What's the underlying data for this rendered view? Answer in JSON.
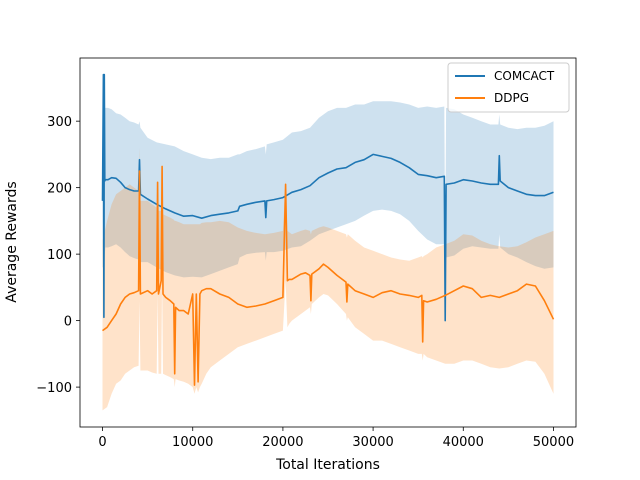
{
  "chart_data": {
    "type": "line",
    "title": "",
    "xlabel": "Total Iterations",
    "ylabel": "Average Rewards",
    "xlim": [
      -2500,
      52500
    ],
    "ylim": [
      -160,
      395
    ],
    "xticks": [
      0,
      10000,
      20000,
      30000,
      40000,
      50000
    ],
    "yticks": [
      -100,
      0,
      100,
      200,
      300
    ],
    "grid": false,
    "legend_position": "top-right",
    "series": [
      {
        "name": "COMCACT",
        "color": "#1f77b4",
        "band_opacity": 0.22,
        "x": [
          0,
          100,
          150,
          200,
          250,
          300,
          600,
          1000,
          1500,
          2000,
          2500,
          3000,
          3500,
          4000,
          4100,
          4200,
          5000,
          6000,
          7000,
          8000,
          9000,
          10000,
          11000,
          12000,
          13000,
          14000,
          15000,
          15200,
          16000,
          17000,
          18000,
          18100,
          18200,
          19000,
          20000,
          21000,
          22000,
          23000,
          24000,
          25000,
          26000,
          27000,
          28000,
          29000,
          30000,
          31000,
          32000,
          33000,
          34000,
          35000,
          36000,
          37000,
          37900,
          38000,
          38100,
          39000,
          40000,
          41000,
          42000,
          43000,
          43900,
          44000,
          44100,
          45000,
          46000,
          47000,
          48000,
          49000,
          50000
        ],
        "y": [
          180,
          370,
          5,
          370,
          210,
          212,
          212,
          215,
          214,
          208,
          200,
          197,
          195,
          195,
          242,
          190,
          183,
          175,
          168,
          162,
          157,
          158,
          154,
          158,
          160,
          162,
          165,
          172,
          175,
          178,
          180,
          155,
          180,
          182,
          185,
          193,
          197,
          203,
          215,
          222,
          228,
          230,
          238,
          242,
          250,
          247,
          244,
          238,
          230,
          220,
          218,
          215,
          217,
          0,
          205,
          207,
          212,
          210,
          207,
          205,
          205,
          248,
          210,
          200,
          195,
          190,
          188,
          188,
          193
        ],
        "upper": [
          150,
          320,
          150,
          320,
          320,
          320,
          320,
          318,
          312,
          310,
          305,
          300,
          298,
          295,
          300,
          290,
          275,
          268,
          265,
          262,
          255,
          250,
          245,
          243,
          245,
          245,
          250,
          250,
          255,
          258,
          262,
          250,
          265,
          268,
          272,
          283,
          285,
          290,
          305,
          315,
          320,
          320,
          325,
          325,
          330,
          330,
          330,
          328,
          325,
          320,
          322,
          320,
          322,
          100,
          320,
          318,
          310,
          305,
          300,
          295,
          295,
          310,
          295,
          290,
          288,
          290,
          290,
          293,
          300
        ],
        "lower": [
          80,
          80,
          80,
          80,
          100,
          110,
          110,
          112,
          115,
          110,
          103,
          97,
          94,
          92,
          120,
          88,
          88,
          80,
          73,
          68,
          65,
          66,
          65,
          70,
          75,
          80,
          85,
          95,
          100,
          102,
          103,
          90,
          103,
          103,
          105,
          110,
          112,
          120,
          130,
          135,
          140,
          145,
          150,
          158,
          165,
          167,
          165,
          160,
          150,
          135,
          122,
          115,
          115,
          0,
          95,
          98,
          108,
          112,
          110,
          108,
          108,
          130,
          110,
          100,
          95,
          88,
          82,
          78,
          80
        ]
      },
      {
        "name": "DDPG",
        "color": "#ff7f0e",
        "band_opacity": 0.22,
        "x": [
          0,
          500,
          1000,
          1500,
          2000,
          2500,
          3000,
          3500,
          4000,
          4100,
          4200,
          5000,
          5500,
          6000,
          6100,
          6200,
          6500,
          6600,
          6700,
          7000,
          7500,
          7900,
          8000,
          8100,
          8500,
          9000,
          9500,
          10000,
          10200,
          10400,
          10600,
          10800,
          11000,
          11500,
          12000,
          13000,
          14000,
          15000,
          16000,
          17000,
          18000,
          19000,
          20000,
          20300,
          20500,
          20700,
          21000,
          22000,
          22500,
          23000,
          23100,
          23200,
          24000,
          24500,
          25000,
          26000,
          27000,
          27100,
          27200,
          28000,
          29000,
          30000,
          31000,
          32000,
          33000,
          34000,
          35000,
          35400,
          35500,
          35600,
          36000,
          37000,
          38000,
          39000,
          40000,
          41000,
          42000,
          43000,
          44000,
          45000,
          46000,
          47000,
          48000,
          49000,
          50000
        ],
        "y": [
          -15,
          -10,
          0,
          10,
          25,
          35,
          40,
          42,
          45,
          225,
          40,
          45,
          40,
          45,
          208,
          40,
          60,
          232,
          40,
          35,
          30,
          25,
          -80,
          20,
          15,
          15,
          10,
          40,
          -97,
          40,
          -92,
          40,
          45,
          48,
          48,
          40,
          35,
          25,
          20,
          22,
          25,
          30,
          35,
          205,
          60,
          62,
          62,
          70,
          72,
          68,
          30,
          70,
          78,
          85,
          80,
          68,
          58,
          28,
          55,
          45,
          40,
          35,
          42,
          45,
          40,
          38,
          35,
          38,
          -32,
          30,
          28,
          32,
          38,
          45,
          52,
          48,
          35,
          38,
          35,
          40,
          45,
          55,
          52,
          30,
          2
        ],
        "upper": [
          120,
          150,
          175,
          190,
          195,
          200,
          205,
          200,
          195,
          260,
          180,
          180,
          175,
          170,
          210,
          165,
          165,
          235,
          160,
          158,
          155,
          152,
          150,
          150,
          148,
          145,
          145,
          145,
          145,
          145,
          145,
          145,
          147,
          148,
          148,
          150,
          148,
          140,
          135,
          132,
          130,
          132,
          135,
          210,
          135,
          133,
          130,
          135,
          137,
          135,
          130,
          135,
          140,
          142,
          140,
          135,
          130,
          125,
          130,
          120,
          110,
          105,
          100,
          95,
          92,
          90,
          95,
          97,
          95,
          97,
          100,
          110,
          115,
          120,
          130,
          128,
          120,
          115,
          112,
          110,
          112,
          118,
          125,
          130,
          135
        ],
        "lower": [
          -135,
          -130,
          -110,
          -95,
          -90,
          -80,
          -75,
          -70,
          -68,
          30,
          -75,
          -75,
          -78,
          -80,
          40,
          -80,
          -80,
          60,
          -80,
          -82,
          -85,
          -88,
          -100,
          -88,
          -90,
          -92,
          -95,
          -100,
          -110,
          -100,
          -108,
          -100,
          -95,
          -80,
          -70,
          -60,
          -50,
          -40,
          -35,
          -30,
          -25,
          -20,
          -15,
          60,
          -10,
          -5,
          0,
          10,
          15,
          20,
          10,
          25,
          35,
          40,
          38,
          25,
          10,
          0,
          5,
          -10,
          -20,
          -30,
          -30,
          -35,
          -40,
          -45,
          -50,
          -50,
          -60,
          -50,
          -55,
          -60,
          -65,
          -65,
          -60,
          -60,
          -65,
          -70,
          -72,
          -70,
          -65,
          -60,
          -62,
          -80,
          -110
        ]
      }
    ]
  }
}
